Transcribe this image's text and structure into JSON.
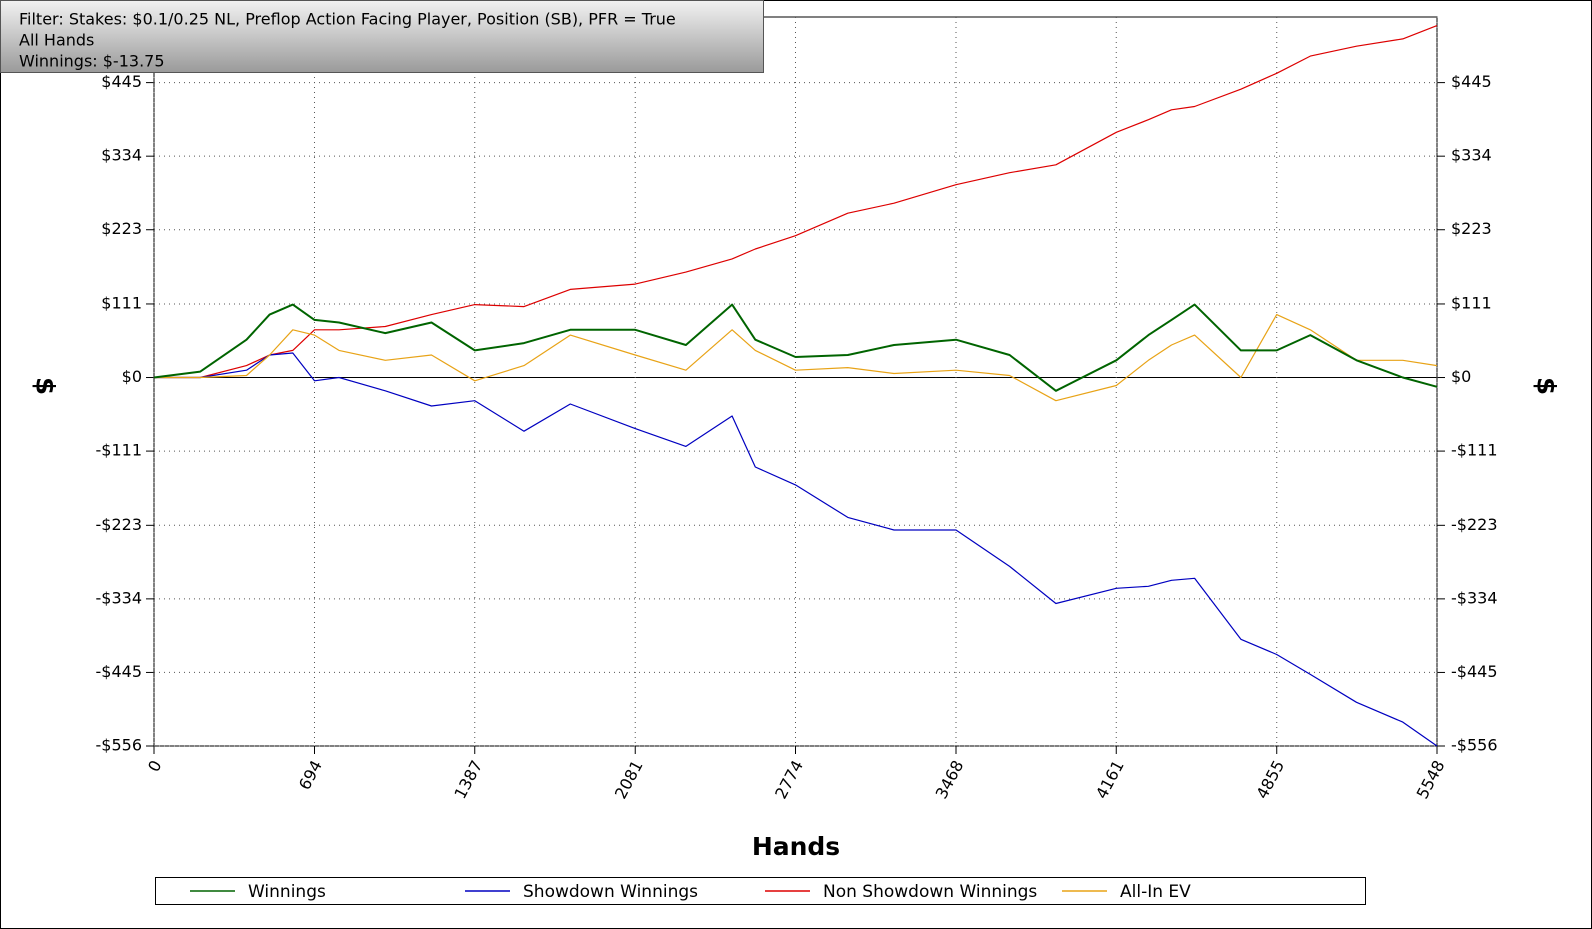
{
  "chart_data": {
    "type": "line",
    "annotations": [
      "Filter: Stakes: $0.1/0.25 NL, Preflop Action Facing Player, Position (SB), PFR = True",
      "All Hands",
      "Winnings: $-13.75"
    ],
    "xlabel": "Hands",
    "ylabel": "$",
    "x": [
      0,
      200,
      400,
      500,
      600,
      694,
      800,
      1000,
      1200,
      1387,
      1600,
      1800,
      2081,
      2300,
      2500,
      2600,
      2774,
      3000,
      3200,
      3468,
      3700,
      3900,
      4161,
      4300,
      4400,
      4500,
      4700,
      4855,
      5000,
      5200,
      5400,
      5548
    ],
    "series": [
      {
        "name": "Winnings",
        "color": "#006400",
        "values": [
          0,
          9,
          57,
          95,
          110,
          87,
          83,
          67,
          83,
          41,
          52,
          72,
          72,
          49,
          110,
          57,
          31,
          34,
          49,
          57,
          34,
          -20,
          26,
          64,
          87,
          110,
          41,
          41,
          64,
          26,
          0,
          -14
        ]
      },
      {
        "name": "Showdown Winnings",
        "color": "#0000c0",
        "values": [
          0,
          0,
          11,
          34,
          37,
          -5,
          0,
          -20,
          -43,
          -35,
          -81,
          -40,
          -77,
          -104,
          -58,
          -135,
          -162,
          -211,
          -230,
          -230,
          -285,
          -341,
          -318,
          -315,
          -306,
          -303,
          -395,
          -418,
          -448,
          -490,
          -520,
          -556
        ]
      },
      {
        "name": "Non Showdown Winnings",
        "color": "#dd0000",
        "values": [
          0,
          0,
          18,
          34,
          41,
          72,
          72,
          77,
          95,
          110,
          107,
          133,
          141,
          159,
          179,
          194,
          214,
          248,
          263,
          291,
          309,
          321,
          370,
          389,
          404,
          409,
          435,
          459,
          485,
          500,
          511,
          531
        ]
      },
      {
        "name": "All-In EV",
        "color": "#e8a317",
        "values": [
          0,
          0,
          3,
          34,
          72,
          64,
          41,
          26,
          34,
          -5,
          18,
          64,
          34,
          11,
          72,
          41,
          11,
          15,
          6,
          11,
          3,
          -35,
          -12,
          26,
          49,
          64,
          0,
          95,
          72,
          26,
          26,
          18
        ]
      }
    ],
    "xlim": [
      0,
      5548
    ],
    "xticks": [
      0,
      694,
      1387,
      2081,
      2774,
      3468,
      4161,
      4855,
      5548
    ],
    "ylim": [
      -556,
      544
    ],
    "yticks": [
      {
        "value": -556,
        "label": "-$556"
      },
      {
        "value": -445,
        "label": "-$445"
      },
      {
        "value": -334,
        "label": "-$334"
      },
      {
        "value": -223,
        "label": "-$223"
      },
      {
        "value": -111,
        "label": "-$111"
      },
      {
        "value": 0,
        "label": "$0"
      },
      {
        "value": 111,
        "label": "$111"
      },
      {
        "value": 223,
        "label": "$223"
      },
      {
        "value": 334,
        "label": "$334"
      },
      {
        "value": 445,
        "label": "$445"
      }
    ],
    "grid": true
  }
}
